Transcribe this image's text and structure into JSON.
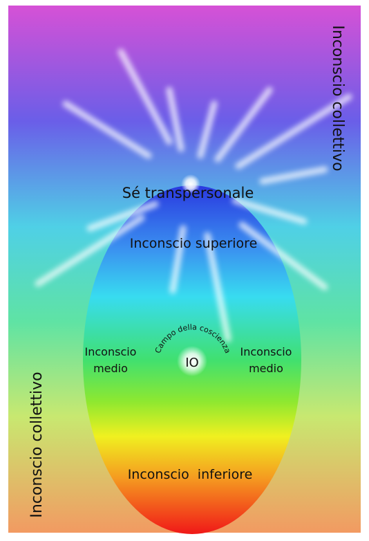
{
  "diagram": {
    "outer_label_top": "Inconscio collettivo",
    "outer_label_bottom": "Inconscio collettivo",
    "self": "Sé transpersonale",
    "higher": "Inconscio superiore",
    "middle_left": [
      "Inconscio",
      "medio"
    ],
    "middle_right": [
      "Inconscio",
      "medio"
    ],
    "field": "Campo della coscienza",
    "ego": "IO",
    "lower": "Inconscio  inferiore"
  }
}
